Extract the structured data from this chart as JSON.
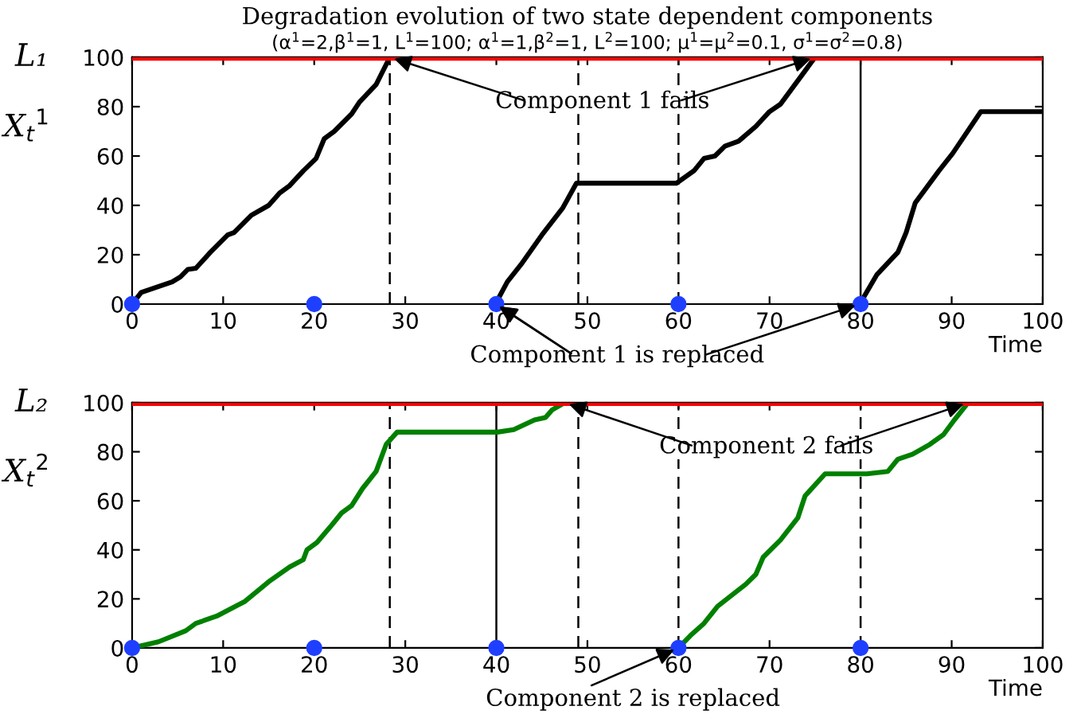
{
  "chart_data": [
    {
      "type": "line",
      "title": "Degradation evolution of two state dependent components",
      "subtitle": "(α$^{1}$=2,β$^{1}$=1, L$^{1}$=100; α$^{1}$=1,β$^{2}$=1, L$^{2}$=100; μ$^{1}$=μ$^{2}$=0.1, σ$^{1}$=σ$^{2}$=0.8)",
      "xlabel": "Time",
      "ylabel": "X$_{t}$$^{1}$",
      "xlim": [
        0,
        100
      ],
      "xticks": [
        0,
        10,
        20,
        30,
        40,
        50,
        60,
        70,
        80,
        90,
        100
      ],
      "ylim": [
        0,
        100
      ],
      "yticks": [
        0,
        20,
        40,
        60,
        80,
        100
      ],
      "grid": false,
      "series": [
        {
          "color": "#000000",
          "x": [
            0,
            1,
            4.4,
            5.3,
            6.1,
            7,
            8.6,
            10.5,
            11.2,
            13.1,
            15,
            16.2,
            17.3,
            18.8,
            20.2,
            21.1,
            22.2,
            24.1,
            25,
            26.8,
            28.3,
            34,
            39.9,
            41.2,
            42.7,
            45,
            47.3,
            48.8,
            59.8,
            61.7,
            62.8,
            64,
            65.1,
            66.6,
            68.5,
            70,
            71.2,
            75,
            78,
            79.9,
            81.8,
            84.1,
            85,
            86,
            88.6,
            90.1,
            93.2,
            100
          ],
          "values": [
            0,
            4.7,
            9,
            11,
            14,
            14.5,
            21,
            28,
            29,
            36,
            40,
            45,
            48,
            54,
            59,
            67,
            70,
            77,
            82,
            89,
            100,
            null,
            0,
            9,
            16,
            28,
            39,
            49,
            49,
            54,
            59,
            60,
            64,
            66,
            72,
            78,
            81,
            100,
            null,
            0,
            12,
            21,
            29,
            41,
            54,
            61,
            78,
            78
          ]
        },
        {
          "type": "scatter",
          "marker": "circle",
          "color": "#1f3fff",
          "x": [
            0,
            20,
            40,
            60,
            80
          ],
          "values": [
            0,
            0,
            0,
            0,
            0
          ]
        }
      ],
      "ref_lines": [
        {
          "axis": "y",
          "value": 100,
          "label": "L₁",
          "color": "#ff0000",
          "line_style": "solid"
        },
        {
          "axis": "x",
          "value": 28.3,
          "color": "#000000",
          "line_style": "dashed"
        },
        {
          "axis": "x",
          "value": 49,
          "color": "#000000",
          "line_style": "dashed"
        },
        {
          "axis": "x",
          "value": 60,
          "color": "#000000",
          "line_style": "dashed"
        },
        {
          "axis": "x",
          "value": 80,
          "color": "#000000",
          "line_style": "solid"
        }
      ],
      "annotations": [
        {
          "text": "Component 1 fails",
          "x": 28.3,
          "y": 100
        },
        {
          "text": "Component 1 is replaced",
          "x": 40,
          "y": 0
        }
      ]
    },
    {
      "type": "line",
      "xlabel": "Time",
      "ylabel": "X$_{t}$$^{2}$",
      "xlim": [
        0,
        100
      ],
      "xticks": [
        0,
        10,
        20,
        30,
        40,
        50,
        60,
        70,
        80,
        90,
        100
      ],
      "ylim": [
        0,
        100
      ],
      "yticks": [
        0,
        20,
        40,
        60,
        80,
        100
      ],
      "grid": false,
      "series": [
        {
          "color": "#008000",
          "x": [
            0,
            2.9,
            5.9,
            7,
            9.3,
            12.4,
            15,
            17.3,
            18.8,
            19.2,
            20.3,
            21.9,
            23,
            24.1,
            25.3,
            26.8,
            27.9,
            29.1,
            40.1,
            41.9,
            44.2,
            45.4,
            46.1,
            47.5,
            55,
            60,
            61.3,
            62.8,
            64.3,
            67.4,
            68.5,
            69.3,
            71.2,
            73.1,
            73.9,
            76.1,
            80.7,
            83,
            84.1,
            85.7,
            87.6,
            89.1,
            90.3,
            91.8
          ],
          "values": [
            0,
            2.5,
            7,
            10,
            13,
            19,
            27,
            33,
            36,
            40,
            43,
            50,
            55,
            58,
            65,
            72,
            83,
            88,
            88,
            89,
            93,
            94,
            97,
            100,
            null,
            0,
            5,
            10,
            17,
            26,
            30,
            37,
            44,
            53,
            62,
            71,
            71,
            72,
            77,
            79,
            83,
            87,
            93,
            100
          ]
        },
        {
          "type": "scatter",
          "marker": "circle",
          "color": "#1f3fff",
          "x": [
            0,
            20,
            40,
            60,
            80
          ],
          "values": [
            0,
            0,
            0,
            0,
            0
          ]
        }
      ],
      "ref_lines": [
        {
          "axis": "y",
          "value": 100,
          "label": "L₂",
          "color": "#ff0000",
          "line_style": "solid"
        },
        {
          "axis": "x",
          "value": 28.3,
          "color": "#000000",
          "line_style": "dashed"
        },
        {
          "axis": "x",
          "value": 40,
          "color": "#000000",
          "line_style": "solid"
        },
        {
          "axis": "x",
          "value": 49,
          "color": "#000000",
          "line_style": "dashed"
        },
        {
          "axis": "x",
          "value": 60,
          "color": "#000000",
          "line_style": "dashed"
        },
        {
          "axis": "x",
          "value": 80,
          "color": "#000000",
          "line_style": "dashed"
        }
      ],
      "annotations": [
        {
          "text": "Component 2 fails",
          "x": 47.5,
          "y": 100
        },
        {
          "text": "Component 2 is replaced",
          "x": 60,
          "y": 0
        }
      ]
    }
  ]
}
